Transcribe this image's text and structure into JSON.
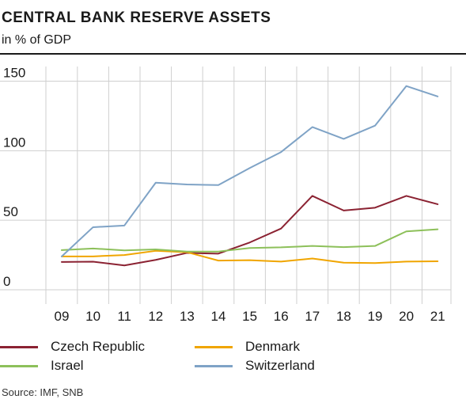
{
  "header": {
    "title": "CENTRAL BANK RESERVE ASSETS",
    "subtitle": "in % of GDP"
  },
  "source": "Source: IMF, SNB",
  "chart_data": {
    "type": "line",
    "title": "CENTRAL BANK RESERVE ASSETS",
    "subtitle": "in % of GDP",
    "xlabel": "",
    "ylabel": "",
    "categories": [
      "09",
      "10",
      "11",
      "12",
      "13",
      "14",
      "15",
      "16",
      "17",
      "18",
      "19",
      "20",
      "21"
    ],
    "ylim": [
      0,
      150
    ],
    "yticks": [
      0,
      50,
      100,
      150
    ],
    "grid": true,
    "legend_position": "bottom",
    "series": [
      {
        "name": "Czech Republic",
        "color": "#8b2232",
        "values": [
          20,
          20.2,
          17.5,
          21.5,
          26.5,
          26,
          34,
          44,
          67.5,
          57,
          59,
          67.5,
          61.5
        ]
      },
      {
        "name": "Denmark",
        "color": "#f0a500",
        "values": [
          24,
          24,
          25,
          28,
          27,
          21,
          21.3,
          20.3,
          22.5,
          19.5,
          19.2,
          20.3,
          20.5
        ]
      },
      {
        "name": "Israel",
        "color": "#8dc05a",
        "values": [
          28.5,
          29.7,
          28.3,
          29,
          27.5,
          27.5,
          30,
          30.5,
          31.5,
          30.7,
          31.5,
          42,
          43.5
        ]
      },
      {
        "name": "Switzerland",
        "color": "#7fa3c6",
        "values": [
          24,
          45,
          46.2,
          77,
          75.7,
          75.3,
          87.5,
          99,
          117,
          108.5,
          118,
          146.5,
          139
        ]
      }
    ]
  }
}
